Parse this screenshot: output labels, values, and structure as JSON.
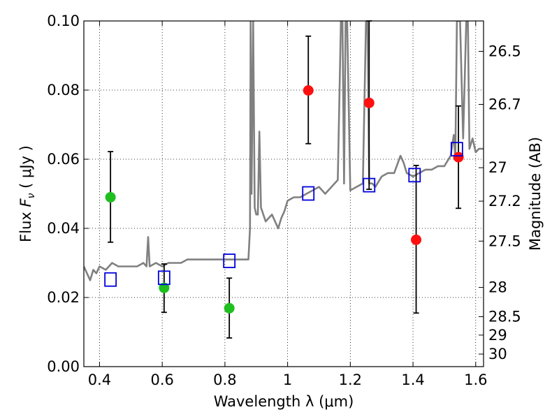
{
  "chart_data": {
    "type": "scatter",
    "xlabel": "Wavelength  λ (μm)",
    "ylabel_prefix": "Flux  ",
    "ylabel_symbol": "F",
    "ylabel_sub": "ν",
    "ylabel_suffix": "  ( μJy )",
    "ylabel_right": "Magnitude (AB)",
    "xlim": [
      0.35,
      1.625
    ],
    "ylim": [
      0.0,
      0.1
    ],
    "grid": true,
    "x_ticks": [
      {
        "value": 0.4,
        "label": "0.4"
      },
      {
        "value": 0.6,
        "label": "0.6"
      },
      {
        "value": 0.8,
        "label": "0.8"
      },
      {
        "value": 1.0,
        "label": "1"
      },
      {
        "value": 1.2,
        "label": "1.2"
      },
      {
        "value": 1.4,
        "label": "1.4"
      },
      {
        "value": 1.6,
        "label": "1.6"
      }
    ],
    "y_ticks": [
      {
        "value": 0.0,
        "label": "0.00"
      },
      {
        "value": 0.02,
        "label": "0.02"
      },
      {
        "value": 0.04,
        "label": "0.04"
      },
      {
        "value": 0.06,
        "label": "0.06"
      },
      {
        "value": 0.08,
        "label": "0.08"
      },
      {
        "value": 0.1,
        "label": "0.10"
      }
    ],
    "mag_ticks": [
      {
        "value": 26.5,
        "label": "26.5"
      },
      {
        "value": 26.7,
        "label": "26.7"
      },
      {
        "value": 27.0,
        "label": "27"
      },
      {
        "value": 27.2,
        "label": "27.2"
      },
      {
        "value": 27.5,
        "label": "27.5"
      },
      {
        "value": 28.0,
        "label": "28"
      },
      {
        "value": 28.5,
        "label": "28.5"
      },
      {
        "value": 29.0,
        "label": "29"
      },
      {
        "value": 30.0,
        "label": "30"
      }
    ],
    "series": [
      {
        "name": "detections-green",
        "color": "#1fbf1f",
        "marker": "circle",
        "points": [
          {
            "x": 0.435,
            "y": 0.049,
            "ylo": 0.036,
            "yhi": 0.0622
          },
          {
            "x": 0.606,
            "y": 0.0228,
            "ylo": 0.0157,
            "yhi": 0.0297
          },
          {
            "x": 0.814,
            "y": 0.0169,
            "ylo": 0.0083,
            "yhi": 0.0256
          }
        ]
      },
      {
        "name": "detections-red",
        "color": "#ff1010",
        "marker": "circle",
        "points": [
          {
            "x": 1.066,
            "y": 0.0799,
            "ylo": 0.0645,
            "yhi": 0.0956
          },
          {
            "x": 1.26,
            "y": 0.0763,
            "ylo": 0.0513,
            "yhi": 0.1
          },
          {
            "x": 1.41,
            "y": 0.0367,
            "ylo": 0.0155,
            "yhi": 0.0582
          },
          {
            "x": 1.545,
            "y": 0.0606,
            "ylo": 0.0458,
            "yhi": 0.0754
          }
        ]
      },
      {
        "name": "model-photometry",
        "color": "#0000dd",
        "marker": "square",
        "points": [
          {
            "x": 0.435,
            "y": 0.0252
          },
          {
            "x": 0.606,
            "y": 0.0257
          },
          {
            "x": 0.814,
            "y": 0.0306
          },
          {
            "x": 1.066,
            "y": 0.0501
          },
          {
            "x": 1.26,
            "y": 0.0525
          },
          {
            "x": 1.405,
            "y": 0.0554
          },
          {
            "x": 1.54,
            "y": 0.0629
          }
        ]
      }
    ],
    "spectrum": {
      "name": "model-spectrum",
      "color": "#808080",
      "x": [
        0.35,
        0.36,
        0.37,
        0.38,
        0.39,
        0.4,
        0.42,
        0.44,
        0.46,
        0.48,
        0.5,
        0.52,
        0.54,
        0.55,
        0.555,
        0.56,
        0.58,
        0.6,
        0.62,
        0.64,
        0.66,
        0.68,
        0.7,
        0.72,
        0.74,
        0.76,
        0.78,
        0.8,
        0.82,
        0.84,
        0.86,
        0.875,
        0.88,
        0.882,
        0.885,
        0.89,
        0.895,
        0.9,
        0.905,
        0.91,
        0.915,
        0.93,
        0.95,
        0.97,
        0.98,
        0.99,
        1.0,
        1.02,
        1.04,
        1.06,
        1.08,
        1.1,
        1.12,
        1.14,
        1.16,
        1.17,
        1.175,
        1.18,
        1.185,
        1.19,
        1.2,
        1.22,
        1.24,
        1.25,
        1.255,
        1.26,
        1.27,
        1.28,
        1.3,
        1.32,
        1.34,
        1.36,
        1.37,
        1.38,
        1.4,
        1.42,
        1.44,
        1.46,
        1.48,
        1.5,
        1.52,
        1.53,
        1.535,
        1.54,
        1.55,
        1.56,
        1.57,
        1.575,
        1.58,
        1.59,
        1.6,
        1.61,
        1.625
      ],
      "y": [
        0.029,
        0.027,
        0.025,
        0.028,
        0.027,
        0.029,
        0.028,
        0.03,
        0.029,
        0.029,
        0.029,
        0.029,
        0.03,
        0.029,
        0.0375,
        0.029,
        0.03,
        0.029,
        0.03,
        0.03,
        0.03,
        0.031,
        0.031,
        0.031,
        0.031,
        0.031,
        0.031,
        0.031,
        0.031,
        0.031,
        0.031,
        0.031,
        0.04,
        0.1,
        0.05,
        0.1,
        0.046,
        0.044,
        0.044,
        0.068,
        0.046,
        0.042,
        0.044,
        0.04,
        0.043,
        0.045,
        0.048,
        0.049,
        0.049,
        0.05,
        0.051,
        0.052,
        0.05,
        0.052,
        0.054,
        0.1,
        0.1,
        0.053,
        0.1,
        0.1,
        0.051,
        0.052,
        0.053,
        0.1,
        0.1,
        0.053,
        0.053,
        0.052,
        0.055,
        0.056,
        0.056,
        0.061,
        0.059,
        0.056,
        0.055,
        0.056,
        0.057,
        0.057,
        0.058,
        0.058,
        0.061,
        0.067,
        0.06,
        0.1,
        0.1,
        0.066,
        0.1,
        0.1,
        0.063,
        0.066,
        0.062,
        0.063,
        0.063
      ]
    }
  }
}
